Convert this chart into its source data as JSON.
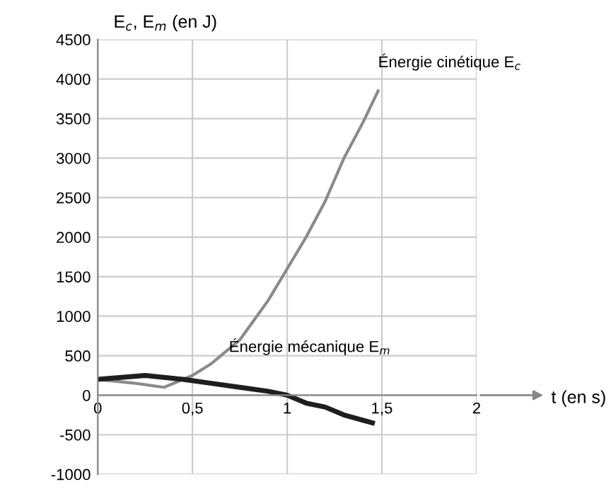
{
  "chart_data": {
    "type": "line",
    "ylabel": "E$_{c}$, E$_{m}$ (en J)",
    "xlabel": "t (en s)",
    "xlim": [
      0,
      2
    ],
    "ylim": [
      -1000,
      4500
    ],
    "xticks": [
      0,
      {
        "value": 0.5,
        "label": "0,5"
      },
      1,
      {
        "value": 1.5,
        "label": "1,5"
      },
      2
    ],
    "yticks": [
      -1000,
      -500,
      0,
      500,
      1000,
      1500,
      2000,
      2500,
      3000,
      3500,
      4000,
      4500
    ],
    "grid": true,
    "legend": false,
    "marker": "none",
    "line_style": "solid",
    "series": [
      {
        "color": "#8a8a8a",
        "x": [
          0,
          0.2,
          0.35,
          0.5,
          0.6,
          0.75,
          0.9,
          1.0,
          1.1,
          1.2,
          1.3,
          1.4,
          1.48
        ],
        "values": [
          200,
          150,
          100,
          250,
          400,
          700,
          1200,
          1600,
          2000,
          2450,
          3000,
          3450,
          3850
        ]
      },
      {
        "color": "#1e1e1e",
        "x": [
          0,
          0.25,
          0.45,
          0.6,
          0.75,
          0.9,
          1.0,
          1.1,
          1.2,
          1.3,
          1.45
        ],
        "values": [
          200,
          250,
          200,
          150,
          100,
          50,
          0,
          -100,
          -150,
          -250,
          -350
        ]
      }
    ],
    "annotations": [
      {
        "text": "Énergie cinétique E$_{c}$",
        "x": 1.48,
        "y": 3850
      },
      {
        "text": "Énergie mécanique E$_{m}$",
        "x": 0.9,
        "y": 50
      }
    ]
  }
}
